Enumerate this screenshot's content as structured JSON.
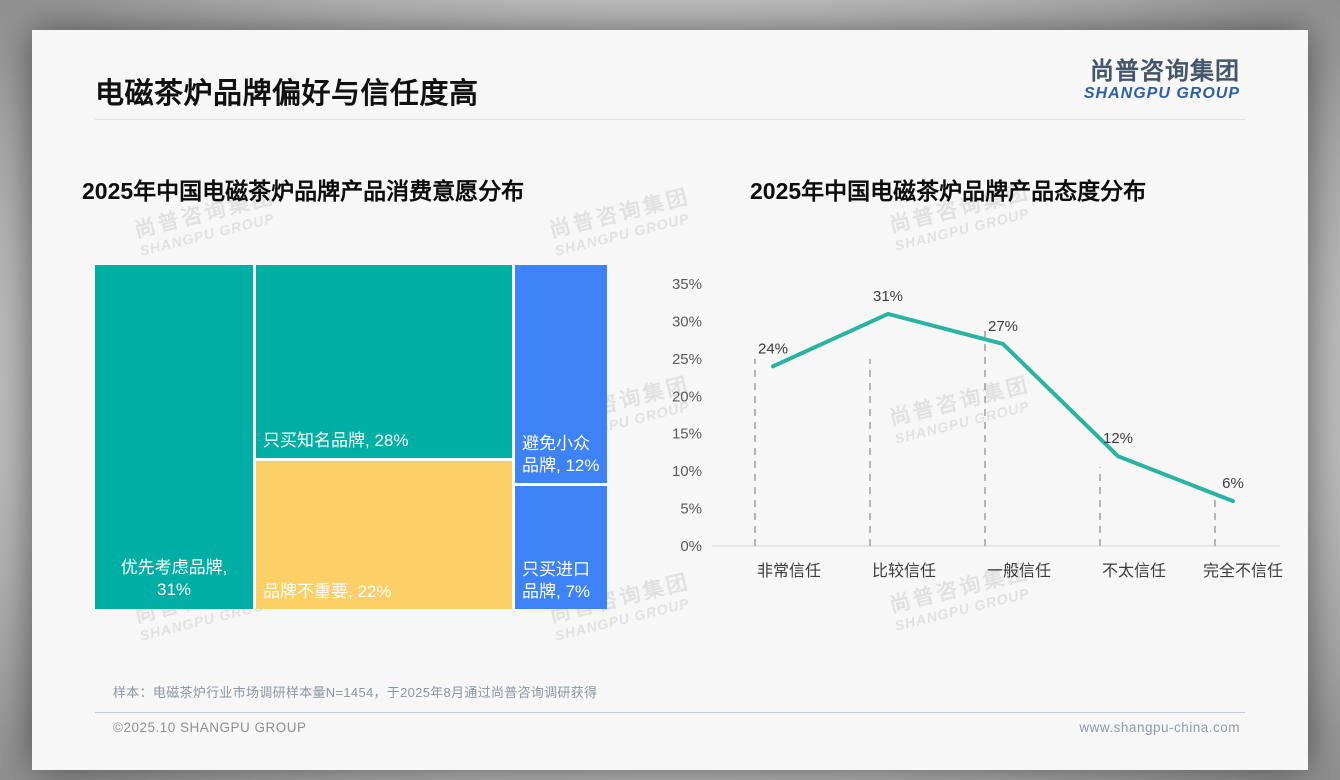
{
  "page": {
    "title": "电磁茶炉品牌偏好与信任度高",
    "logo": {
      "cn": "尚普咨询集团",
      "en": "SHANGPU GROUP"
    },
    "watermark": {
      "cn": "尚普咨询集团",
      "en": "SHANGPU GROUP"
    },
    "footnote": "样本：电磁茶炉行业市场调研样本量N=1454，于2025年8月通过尚普咨询调研获得",
    "footer": {
      "left": "©2025.10 SHANGPU GROUP",
      "right": "www.shangpu-china.com"
    }
  },
  "colors": {
    "teal": "#00AFA3",
    "yellow": "#FCCF67",
    "blue": "#3E82F7",
    "line": "#2BB3A2",
    "axis": "#d7d7d7",
    "dash": "#a0a0a0",
    "tick_text": "#5a5a5a",
    "label_text": "#3c3c3c",
    "logo_blue": "#2e5fa3"
  },
  "chart_data": [
    {
      "type": "treemap",
      "title": "2025年中国电磁茶炉品牌产品消费意愿分布",
      "items": [
        {
          "label": "优先考虑品牌",
          "value": 31,
          "lines": [
            "优先考虑品牌,",
            "31%"
          ],
          "color": "#00AFA3"
        },
        {
          "label": "只买知名品牌",
          "value": 28,
          "lines": [
            "只买知名品牌, 28%"
          ],
          "color": "#00AFA3"
        },
        {
          "label": "品牌不重要",
          "value": 22,
          "lines": [
            "品牌不重要, 22%"
          ],
          "color": "#FCCF67"
        },
        {
          "label": "避免小众品牌",
          "value": 12,
          "lines": [
            "避免小众",
            "品牌, 12%"
          ],
          "color": "#3E82F7"
        },
        {
          "label": "只买进口品牌",
          "value": 7,
          "lines": [
            "只买进口",
            "品牌, 7%"
          ],
          "color": "#3E82F7"
        }
      ]
    },
    {
      "type": "line",
      "title": "2025年中国电磁茶炉品牌产品态度分布",
      "categories": [
        "非常信任",
        "比较信任",
        "一般信任",
        "不太信任",
        "完全不信任"
      ],
      "values": [
        24,
        31,
        27,
        12,
        6
      ],
      "data_labels": [
        "24%",
        "31%",
        "27%",
        "12%",
        "6%"
      ],
      "ylim": [
        0,
        35
      ],
      "ytick_step": 5,
      "grid": "vertical-dashed",
      "dashline_top_pct": [
        25,
        25,
        29,
        10.5,
        6.5
      ],
      "legend": "none"
    }
  ]
}
